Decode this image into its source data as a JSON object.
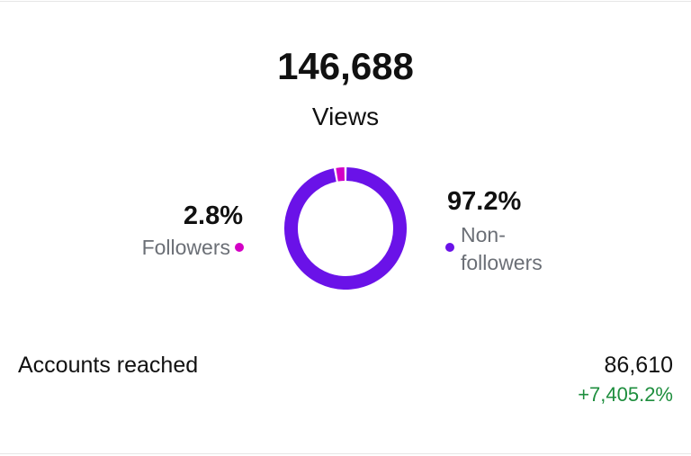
{
  "summary": {
    "views_count": "146,688",
    "views_label": "Views"
  },
  "chart_data": {
    "type": "donut",
    "categories": [
      "Followers",
      "Non-followers"
    ],
    "values": [
      2.8,
      97.2
    ],
    "value_labels": [
      "2.8%",
      "97.2%"
    ],
    "colors": [
      "#d300c5",
      "#6a12e8"
    ]
  },
  "accounts": {
    "label": "Accounts reached",
    "value": "86,610",
    "change": "+7,405.2%"
  }
}
